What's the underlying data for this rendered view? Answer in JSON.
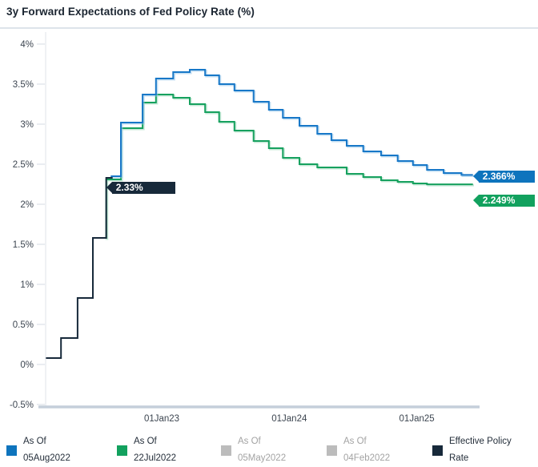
{
  "title": "3y Forward Expectations of Fed Policy Rate (%)",
  "colors": {
    "blue": "#0e74bd",
    "blue_line": "#1878c8",
    "blue_halo": "#8fc3e8",
    "green": "#12a15e",
    "green_line": "#17a15f",
    "green_halo": "#93d5b5",
    "gray": "#bcbcbc",
    "dark": "#17293a",
    "axis_baseline": "#c5cfda",
    "axis_vline": "#dfe3e8",
    "tick": "#e3e7ec",
    "axis_label": "#3c4550"
  },
  "chart_data": {
    "type": "line",
    "title": "3y Forward Expectations of Fed Policy Rate (%)",
    "xlabel": "",
    "ylabel": "",
    "ylim": [
      -0.5,
      4
    ],
    "xlim": [
      2022.09,
      2025.5
    ],
    "grid": false,
    "legend_position": "bottom",
    "step": true,
    "y_ticks": [
      {
        "label": "4%",
        "value": 4
      },
      {
        "label": "3.5%",
        "value": 3.5
      },
      {
        "label": "3%",
        "value": 3
      },
      {
        "label": "2.5%",
        "value": 2.5
      },
      {
        "label": "2%",
        "value": 2
      },
      {
        "label": "1.5%",
        "value": 1.5
      },
      {
        "label": "1%",
        "value": 1
      },
      {
        "label": "0.5%",
        "value": 0.5
      },
      {
        "label": "0%",
        "value": 0
      },
      {
        "label": "-0.5%",
        "value": -0.5
      }
    ],
    "x_ticks": [
      {
        "label": "01Jan23",
        "year": 2023
      },
      {
        "label": "01Jan24",
        "year": 2024
      },
      {
        "label": "01Jan25",
        "year": 2025
      }
    ],
    "series": [
      {
        "name": "As Of 22Jul2022",
        "color_key": "green_line",
        "halo_key": "green_halo",
        "end_year": 2025.44,
        "points": [
          [
            2022.55,
            1.58
          ],
          [
            2022.565,
            2.31
          ],
          [
            2022.68,
            2.95
          ],
          [
            2022.85,
            3.27
          ],
          [
            2022.955,
            3.37
          ],
          [
            2023.09,
            3.33
          ],
          [
            2023.22,
            3.25
          ],
          [
            2023.34,
            3.15
          ],
          [
            2023.45,
            3.03
          ],
          [
            2023.57,
            2.92
          ],
          [
            2023.72,
            2.79
          ],
          [
            2023.84,
            2.7
          ],
          [
            2023.95,
            2.58
          ],
          [
            2024.08,
            2.5
          ],
          [
            2024.22,
            2.46
          ],
          [
            2024.45,
            2.38
          ],
          [
            2024.58,
            2.34
          ],
          [
            2024.72,
            2.3
          ],
          [
            2024.85,
            2.28
          ],
          [
            2024.97,
            2.26
          ],
          [
            2025.08,
            2.249
          ]
        ]
      },
      {
        "name": "As Of 05Aug2022",
        "color_key": "blue_line",
        "halo_key": "blue_halo",
        "end_year": 2025.44,
        "points": [
          [
            2022.6,
            2.35
          ],
          [
            2022.68,
            3.02
          ],
          [
            2022.85,
            3.37
          ],
          [
            2022.955,
            3.57
          ],
          [
            2023.09,
            3.65
          ],
          [
            2023.22,
            3.68
          ],
          [
            2023.34,
            3.61
          ],
          [
            2023.45,
            3.5
          ],
          [
            2023.57,
            3.42
          ],
          [
            2023.72,
            3.28
          ],
          [
            2023.84,
            3.18
          ],
          [
            2023.95,
            3.08
          ],
          [
            2024.08,
            2.98
          ],
          [
            2024.22,
            2.88
          ],
          [
            2024.33,
            2.8
          ],
          [
            2024.45,
            2.73
          ],
          [
            2024.58,
            2.66
          ],
          [
            2024.72,
            2.61
          ],
          [
            2024.85,
            2.54
          ],
          [
            2024.97,
            2.49
          ],
          [
            2025.08,
            2.43
          ],
          [
            2025.21,
            2.39
          ],
          [
            2025.35,
            2.366
          ]
        ]
      },
      {
        "name": "Effective Policy Rate",
        "color_key": "dark",
        "halo_key": null,
        "end_year": 2022.615,
        "points": [
          [
            2022.092,
            0.08
          ],
          [
            2022.21,
            0.33
          ],
          [
            2022.34,
            0.83
          ],
          [
            2022.46,
            1.58
          ],
          [
            2022.565,
            2.33
          ]
        ]
      }
    ],
    "annotations": [
      {
        "id": "effective-rate-label",
        "label": "2.33%",
        "value": 2.33,
        "at_year": 2022.565,
        "color_key": "dark"
      },
      {
        "id": "blue-end-label",
        "label": "2.366%",
        "value": 2.366,
        "at_year": 2025.44,
        "color_key": "blue"
      },
      {
        "id": "green-end-label",
        "label": "2.249%",
        "value": 2.249,
        "at_year": 2025.44,
        "color_key": "green"
      }
    ]
  },
  "legend": {
    "items": [
      {
        "line1": "As Of",
        "line2": "05Aug2022",
        "color_key": "blue",
        "muted": false
      },
      {
        "line1": "As Of",
        "line2": "22Jul2022",
        "color_key": "green",
        "muted": false
      },
      {
        "line1": "As Of",
        "line2": "05May2022",
        "color_key": "gray",
        "muted": true
      },
      {
        "line1": "As Of",
        "line2": "04Feb2022",
        "color_key": "gray",
        "muted": true
      },
      {
        "line1": "Effective Policy",
        "line2": "Rate",
        "color_key": "dark",
        "muted": false
      }
    ]
  }
}
